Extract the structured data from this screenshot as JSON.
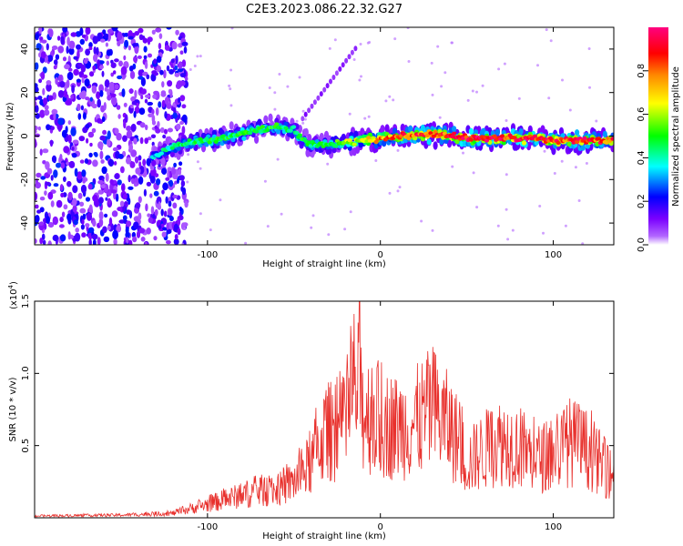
{
  "figure_title": "C2E3.2023.086.22.32.G27",
  "colors": {
    "snr_line": "#e8302c",
    "axis": "#000000",
    "cmap": [
      "#ffffff",
      "#8b00ff",
      "#0000ff",
      "#00ffff",
      "#00ff00",
      "#ffff00",
      "#ff8800",
      "#ff0000",
      "#ff0080"
    ]
  },
  "chart_data": [
    {
      "type": "heatmap",
      "title": "C2E3.2023.086.22.32.G27",
      "xlabel": "Height of straight line (km)",
      "ylabel": "Frequency (Hz)",
      "xlim": [
        -200,
        135
      ],
      "ylim": [
        -50,
        50
      ],
      "xticks": [
        -100,
        0,
        100
      ],
      "xtick_labels": [
        "-100",
        "0",
        "100"
      ],
      "yticks": [
        -40,
        -20,
        0,
        20,
        40
      ],
      "ytick_labels": [
        "-40",
        "-20",
        "0",
        "20",
        "40"
      ],
      "colorbar": {
        "label": "Normalized spectral amplitude",
        "range": [
          0,
          1
        ],
        "ticks": [
          0.0,
          0.2,
          0.4,
          0.6,
          0.8
        ],
        "tick_labels": [
          "0.0",
          "0.2",
          "0.4",
          "0.6",
          "0.8"
        ],
        "colormap": "rainbow"
      },
      "ridge": {
        "x": [
          -132,
          -120,
          -110,
          -100,
          -90,
          -80,
          -70,
          -60,
          -50,
          -45,
          -40,
          -30,
          -20,
          -10,
          0,
          10,
          20,
          30,
          40,
          50,
          60,
          70,
          80,
          90,
          100,
          110,
          120,
          135
        ],
        "y": [
          -10,
          -5,
          -3,
          -2,
          -1,
          1,
          3,
          4,
          3,
          -2,
          -4,
          -4,
          -3,
          -2,
          -1,
          0,
          0,
          1,
          0,
          -1,
          -1,
          -1,
          -1,
          -1,
          -2,
          -2,
          -2,
          -2
        ],
        "peak_amplitude": [
          0.35,
          0.45,
          0.45,
          0.5,
          0.5,
          0.5,
          0.5,
          0.5,
          0.45,
          0.5,
          0.45,
          0.5,
          0.6,
          0.7,
          0.8,
          0.85,
          0.9,
          0.92,
          0.9,
          0.95,
          0.95,
          0.95,
          0.95,
          0.93,
          0.92,
          0.9,
          0.9,
          0.9
        ]
      },
      "noise_region_x": [
        -200,
        -120
      ]
    },
    {
      "type": "line",
      "xlabel": "Height of straight line (km)",
      "ylabel": "SNR (10 * v/v)",
      "y_multiplier": "(x10",
      "y_multiplier_exp": "4",
      "y_multiplier_close": ")",
      "xlim": [
        -200,
        135
      ],
      "ylim": [
        0,
        1.5
      ],
      "xticks": [
        -100,
        0,
        100
      ],
      "xtick_labels": [
        "-100",
        "0",
        "100"
      ],
      "yticks": [
        0.5,
        1.0,
        1.5
      ],
      "ytick_labels": [
        "0.5",
        "1.0",
        "1.5"
      ],
      "envelope": {
        "x": [
          -200,
          -150,
          -120,
          -110,
          -100,
          -90,
          -80,
          -70,
          -60,
          -50,
          -40,
          -35,
          -30,
          -20,
          -15,
          -10,
          0,
          10,
          20,
          30,
          40,
          45,
          50,
          60,
          70,
          80,
          90,
          100,
          110,
          120,
          130,
          135
        ],
        "y": [
          0.02,
          0.03,
          0.05,
          0.1,
          0.15,
          0.2,
          0.25,
          0.3,
          0.3,
          0.4,
          0.6,
          0.85,
          0.95,
          1.0,
          1.5,
          1.2,
          1.05,
          1.0,
          1.05,
          1.2,
          1.0,
          0.85,
          0.6,
          0.75,
          0.85,
          0.8,
          0.65,
          0.7,
          0.85,
          0.75,
          0.55,
          0.45
        ]
      },
      "peak": {
        "x": -12,
        "y": 1.52
      }
    }
  ]
}
